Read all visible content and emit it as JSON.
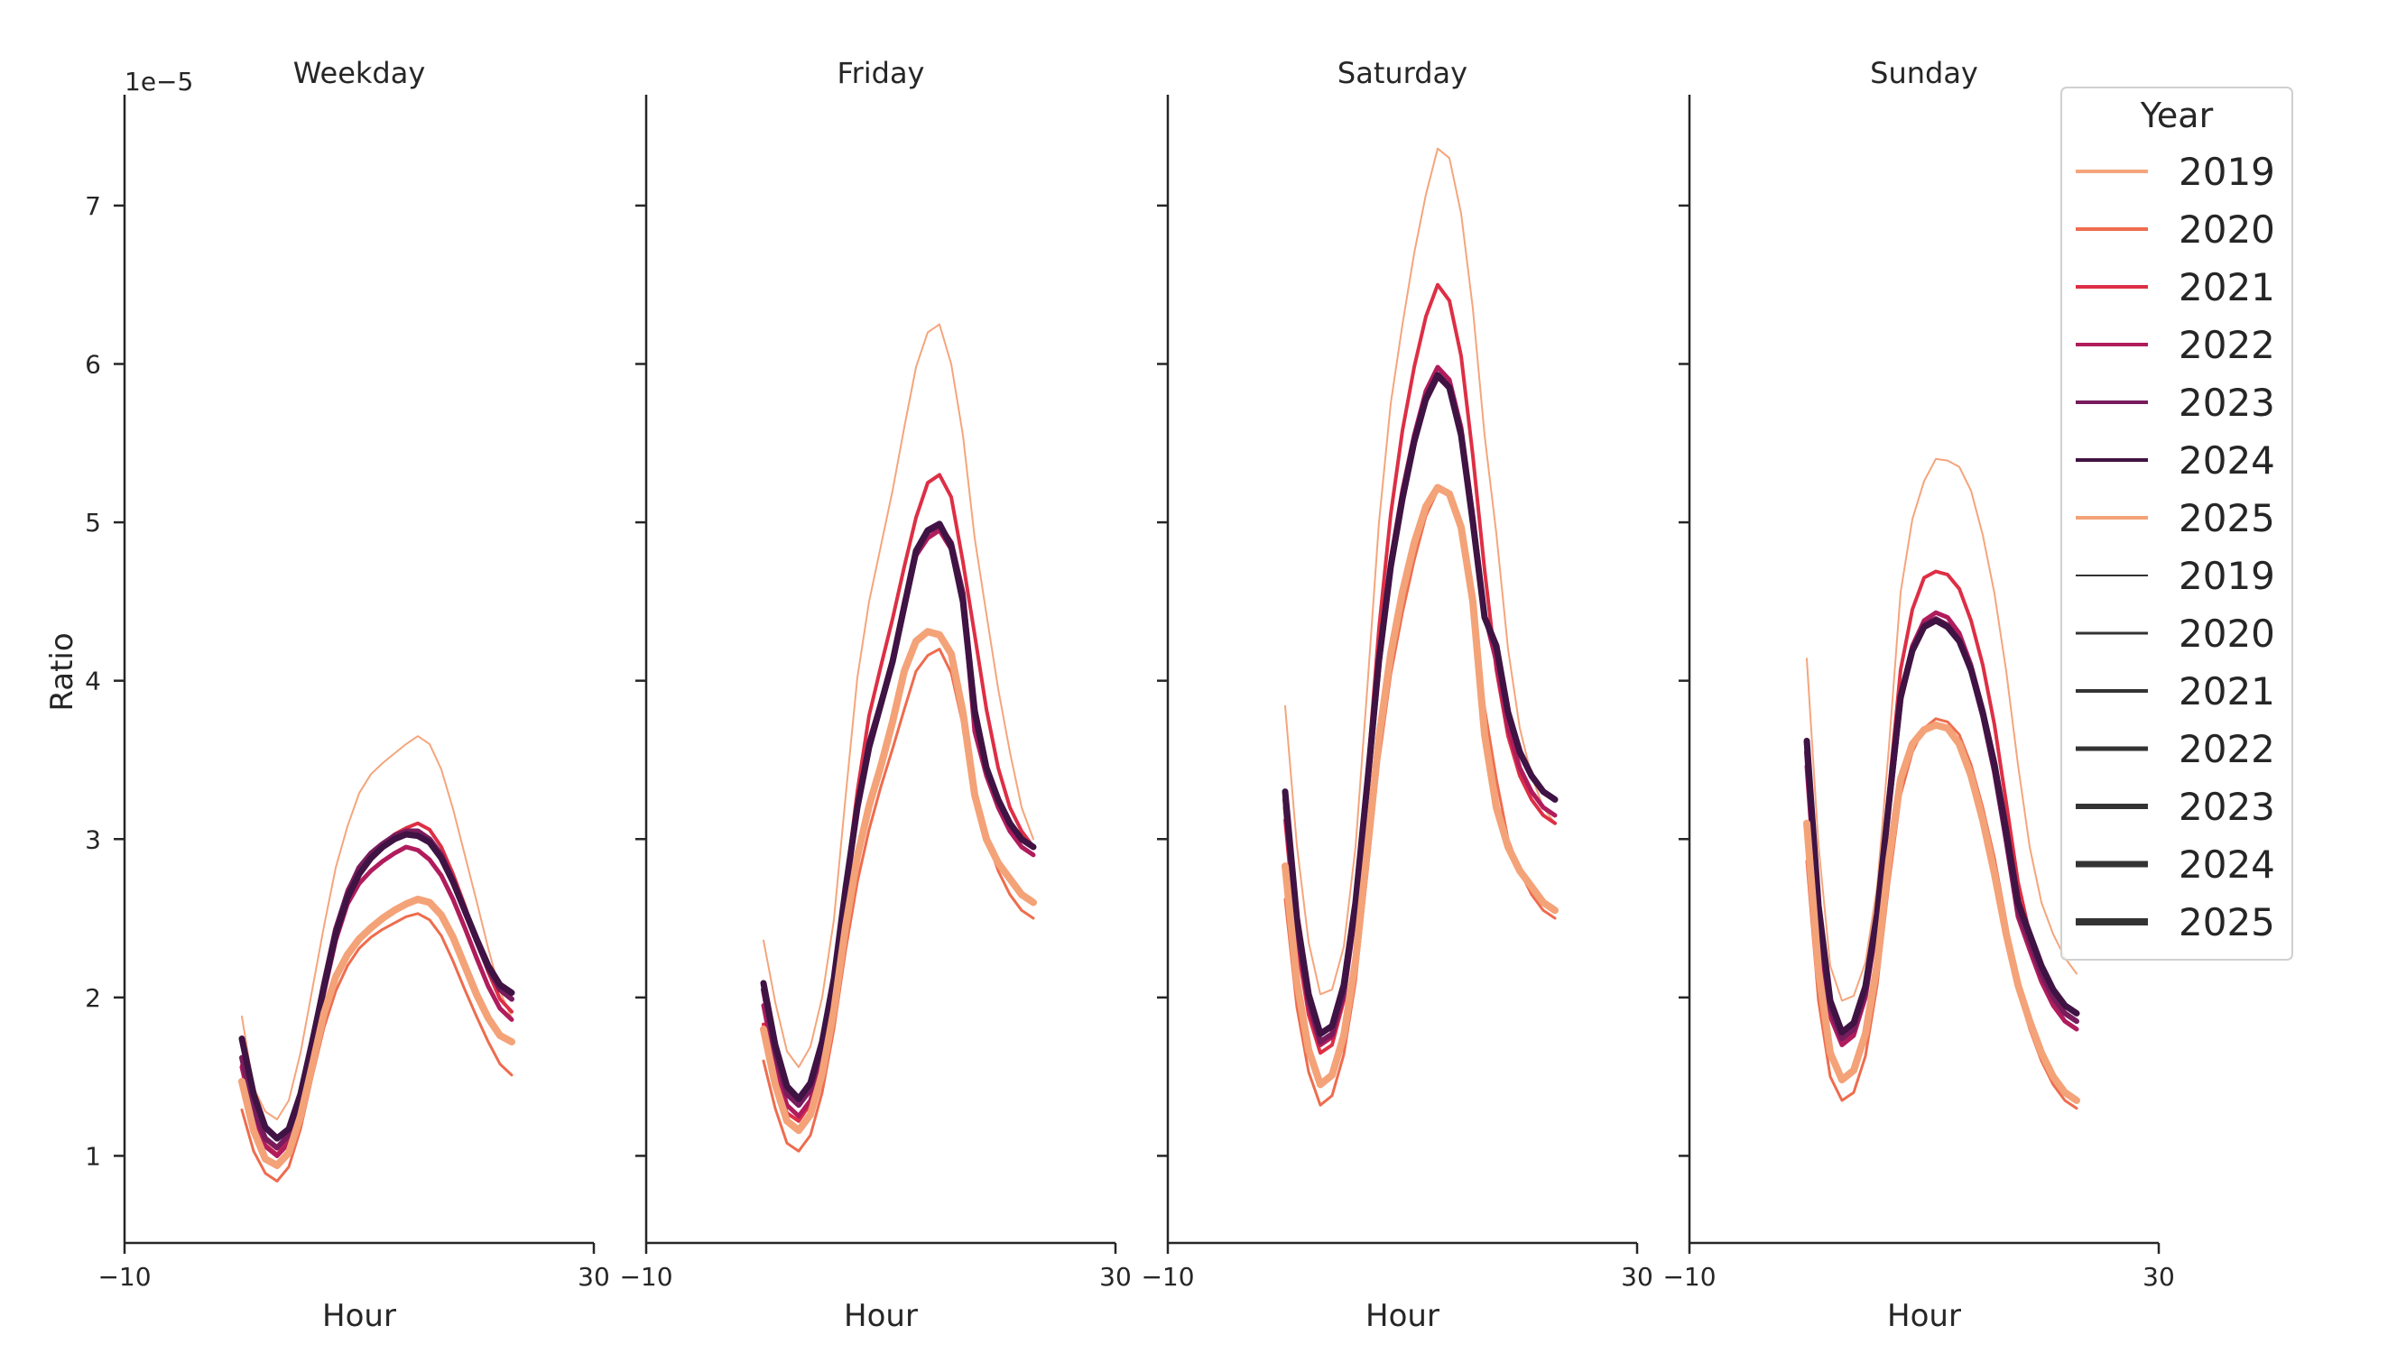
{
  "chart_data": {
    "type": "line",
    "ylabel": "Ratio",
    "y_offset_label": "1e−5",
    "y_scale": 1e-05,
    "ylim": [
      0.45,
      7.7
    ],
    "yticks": [
      1,
      2,
      3,
      4,
      5,
      6,
      7
    ],
    "xlim": [
      -10,
      30
    ],
    "xticks": [
      -10,
      30
    ],
    "grid": false,
    "hours": [
      0,
      1,
      2,
      3,
      4,
      5,
      6,
      7,
      8,
      9,
      10,
      11,
      12,
      13,
      14,
      15,
      16,
      17,
      18,
      19,
      20,
      21,
      22,
      23
    ],
    "colors": {
      "2019": "#f5a57c",
      "2020": "#ee6c4e",
      "2021": "#dd2f45",
      "2022": "#b01c5c",
      "2023": "#781c5d",
      "2024": "#3f1343",
      "2025": "#f4a278",
      "size_legend": "#333333"
    },
    "legend": {
      "title": "Year",
      "location": "upper-right",
      "hue_entries": [
        "2019",
        "2020",
        "2021",
        "2022",
        "2023",
        "2024",
        "2025"
      ],
      "size_entries": [
        "2019",
        "2020",
        "2021",
        "2022",
        "2023",
        "2024",
        "2025"
      ]
    },
    "panels": [
      {
        "title": "Weekday",
        "xlabel": "Hour",
        "series": [
          {
            "name": "2019",
            "width": 1,
            "values": [
              1.88,
              1.43,
              1.28,
              1.23,
              1.35,
              1.65,
              2.05,
              2.45,
              2.82,
              3.08,
              3.29,
              3.41,
              3.48,
              3.54,
              3.6,
              3.65,
              3.6,
              3.44,
              3.19,
              2.9,
              2.61,
              2.31,
              2.04,
              1.87
            ]
          },
          {
            "name": "2020",
            "width": 2,
            "values": [
              1.29,
              1.03,
              0.89,
              0.84,
              0.93,
              1.17,
              1.5,
              1.81,
              2.04,
              2.2,
              2.31,
              2.38,
              2.43,
              2.47,
              2.51,
              2.53,
              2.49,
              2.39,
              2.23,
              2.05,
              1.88,
              1.72,
              1.58,
              1.51
            ]
          },
          {
            "name": "2021",
            "width": 3,
            "values": [
              1.57,
              1.25,
              1.07,
              1.01,
              1.09,
              1.34,
              1.7,
              2.08,
              2.42,
              2.68,
              2.82,
              2.91,
              2.97,
              3.03,
              3.07,
              3.1,
              3.06,
              2.95,
              2.78,
              2.58,
              2.37,
              2.16,
              1.99,
              1.91
            ]
          },
          {
            "name": "2022",
            "width": 4,
            "values": [
              1.56,
              1.24,
              1.06,
              1.0,
              1.08,
              1.32,
              1.67,
              2.03,
              2.36,
              2.59,
              2.72,
              2.8,
              2.86,
              2.91,
              2.95,
              2.93,
              2.87,
              2.77,
              2.62,
              2.44,
              2.25,
              2.07,
              1.93,
              1.86
            ]
          },
          {
            "name": "2023",
            "width": 5,
            "values": [
              1.62,
              1.29,
              1.11,
              1.05,
              1.13,
              1.37,
              1.72,
              2.09,
              2.43,
              2.66,
              2.82,
              2.91,
              2.97,
              3.02,
              3.05,
              3.05,
              3.0,
              2.9,
              2.74,
              2.55,
              2.36,
              2.18,
              2.05,
              1.99
            ]
          },
          {
            "name": "2024",
            "width": 6,
            "values": [
              1.74,
              1.39,
              1.18,
              1.11,
              1.17,
              1.39,
              1.72,
              2.07,
              2.4,
              2.63,
              2.78,
              2.88,
              2.95,
              3.0,
              3.03,
              3.02,
              2.98,
              2.88,
              2.73,
              2.55,
              2.37,
              2.2,
              2.08,
              2.03
            ]
          },
          {
            "name": "2025",
            "width": 7,
            "values": [
              1.47,
              1.16,
              0.98,
              0.94,
              1.02,
              1.25,
              1.57,
              1.9,
              2.13,
              2.27,
              2.37,
              2.44,
              2.5,
              2.55,
              2.59,
              2.62,
              2.6,
              2.52,
              2.38,
              2.2,
              2.02,
              1.87,
              1.76,
              1.72
            ]
          }
        ]
      },
      {
        "title": "Friday",
        "xlabel": "Hour",
        "series": [
          {
            "name": "2019",
            "width": 1,
            "values": [
              2.36,
              1.97,
              1.66,
              1.56,
              1.69,
              2.0,
              2.49,
              3.27,
              4.02,
              4.5,
              4.85,
              5.2,
              5.6,
              5.98,
              6.2,
              6.25,
              6.0,
              5.55,
              4.9,
              4.42,
              3.95,
              3.55,
              3.2,
              3.0
            ]
          },
          {
            "name": "2020",
            "width": 2,
            "values": [
              1.6,
              1.3,
              1.08,
              1.03,
              1.13,
              1.4,
              1.8,
              2.3,
              2.73,
              3.06,
              3.33,
              3.57,
              3.82,
              4.06,
              4.16,
              4.2,
              4.05,
              3.72,
              3.31,
              3.01,
              2.8,
              2.65,
              2.55,
              2.5
            ]
          },
          {
            "name": "2021",
            "width": 3,
            "values": [
              1.83,
              1.5,
              1.27,
              1.22,
              1.33,
              1.62,
              2.07,
              2.71,
              3.3,
              3.78,
              4.09,
              4.39,
              4.72,
              5.03,
              5.25,
              5.3,
              5.16,
              4.75,
              4.29,
              3.82,
              3.45,
              3.2,
              3.05,
              2.95
            ]
          },
          {
            "name": "2022",
            "width": 4,
            "values": [
              1.95,
              1.57,
              1.32,
              1.25,
              1.35,
              1.62,
              2.03,
              2.63,
              3.18,
              3.59,
              3.87,
              4.14,
              4.5,
              4.79,
              4.9,
              4.95,
              4.83,
              4.51,
              3.68,
              3.4,
              3.2,
              3.05,
              2.95,
              2.9
            ]
          },
          {
            "name": "2023",
            "width": 5,
            "values": [
              2.05,
              1.65,
              1.39,
              1.32,
              1.42,
              1.69,
              2.09,
              2.67,
              3.21,
              3.61,
              3.86,
              4.12,
              4.46,
              4.8,
              4.94,
              4.98,
              4.87,
              4.55,
              3.78,
              3.45,
              3.25,
              3.1,
              3.0,
              2.95
            ]
          },
          {
            "name": "2024",
            "width": 6,
            "values": [
              2.09,
              1.7,
              1.44,
              1.36,
              1.46,
              1.72,
              2.12,
              2.69,
              3.2,
              3.58,
              3.85,
              4.12,
              4.47,
              4.82,
              4.95,
              4.99,
              4.85,
              4.5,
              3.81,
              3.45,
              3.25,
              3.1,
              3.0,
              2.95
            ]
          },
          {
            "name": "2025",
            "width": 7,
            "values": [
              1.8,
              1.45,
              1.22,
              1.16,
              1.26,
              1.52,
              1.92,
              2.45,
              2.89,
              3.21,
              3.46,
              3.74,
              4.06,
              4.25,
              4.31,
              4.29,
              4.17,
              3.8,
              3.28,
              3.0,
              2.85,
              2.75,
              2.65,
              2.6
            ]
          }
        ]
      },
      {
        "title": "Saturday",
        "xlabel": "Hour",
        "series": [
          {
            "name": "2019",
            "width": 1,
            "values": [
              3.84,
              2.96,
              2.35,
              2.02,
              2.05,
              2.32,
              2.95,
              3.95,
              5.0,
              5.75,
              6.25,
              6.7,
              7.07,
              7.36,
              7.3,
              6.95,
              6.35,
              5.55,
              4.93,
              4.2,
              3.7,
              3.4,
              3.2,
              3.1
            ]
          },
          {
            "name": "2020",
            "width": 2,
            "values": [
              2.62,
              1.94,
              1.53,
              1.32,
              1.38,
              1.64,
              2.1,
              2.79,
              3.5,
              4.04,
              4.43,
              4.76,
              5.04,
              5.2,
              5.18,
              4.96,
              4.46,
              3.83,
              3.38,
              3.0,
              2.8,
              2.65,
              2.55,
              2.5
            ]
          },
          {
            "name": "2021",
            "width": 3,
            "values": [
              3.12,
              2.34,
              1.89,
              1.65,
              1.7,
              1.98,
              2.56,
              3.4,
              4.33,
              5.05,
              5.58,
              5.98,
              6.3,
              6.5,
              6.4,
              6.05,
              5.42,
              4.7,
              4.07,
              3.65,
              3.4,
              3.25,
              3.15,
              3.1
            ]
          },
          {
            "name": "2022",
            "width": 4,
            "values": [
              3.2,
              2.41,
              1.94,
              1.7,
              1.75,
              2.01,
              2.55,
              3.33,
              4.14,
              4.76,
              5.2,
              5.55,
              5.83,
              5.98,
              5.9,
              5.6,
              5.05,
              4.42,
              4.12,
              3.7,
              3.45,
              3.3,
              3.2,
              3.15
            ]
          },
          {
            "name": "2023",
            "width": 5,
            "values": [
              3.25,
              2.45,
              1.98,
              1.72,
              1.77,
              2.03,
              2.56,
              3.32,
              4.11,
              4.71,
              5.14,
              5.5,
              5.77,
              5.92,
              5.85,
              5.55,
              5.0,
              4.4,
              4.2,
              3.8,
              3.55,
              3.4,
              3.3,
              3.25
            ]
          },
          {
            "name": "2024",
            "width": 6,
            "values": [
              3.3,
              2.5,
              2.02,
              1.77,
              1.82,
              2.08,
              2.6,
              3.35,
              4.13,
              4.72,
              5.15,
              5.51,
              5.78,
              5.93,
              5.85,
              5.55,
              5.0,
              4.4,
              4.22,
              3.8,
              3.55,
              3.4,
              3.3,
              3.25
            ]
          },
          {
            "name": "2025",
            "width": 7,
            "values": [
              2.83,
              2.1,
              1.67,
              1.45,
              1.51,
              1.76,
              2.23,
              2.93,
              3.64,
              4.17,
              4.56,
              4.87,
              5.1,
              5.22,
              5.18,
              4.97,
              4.5,
              3.66,
              3.2,
              2.95,
              2.8,
              2.7,
              2.6,
              2.55
            ]
          }
        ]
      },
      {
        "title": "Sunday",
        "xlabel": "Hour",
        "series": [
          {
            "name": "2019",
            "width": 1,
            "values": [
              4.14,
              2.96,
              2.2,
              1.98,
              2.01,
              2.22,
              2.7,
              3.58,
              4.56,
              5.02,
              5.26,
              5.4,
              5.39,
              5.35,
              5.2,
              4.92,
              4.55,
              4.06,
              3.47,
              2.95,
              2.6,
              2.4,
              2.25,
              2.15
            ]
          },
          {
            "name": "2020",
            "width": 2,
            "values": [
              2.86,
              1.98,
              1.5,
              1.35,
              1.4,
              1.63,
              2.08,
              2.72,
              3.28,
              3.55,
              3.7,
              3.76,
              3.74,
              3.66,
              3.47,
              3.2,
              2.88,
              2.48,
              2.05,
              1.8,
              1.6,
              1.45,
              1.35,
              1.3
            ]
          },
          {
            "name": "2021",
            "width": 3,
            "values": [
              3.5,
              2.5,
              1.95,
              1.78,
              1.84,
              2.08,
              2.56,
              3.31,
              4.07,
              4.45,
              4.65,
              4.69,
              4.67,
              4.58,
              4.38,
              4.1,
              3.72,
              3.23,
              2.73,
              2.4,
              2.2,
              2.05,
              1.95,
              1.9
            ]
          },
          {
            "name": "2022",
            "width": 4,
            "values": [
              3.46,
              2.45,
              1.88,
              1.7,
              1.76,
              2.0,
              2.47,
              3.19,
              3.91,
              4.22,
              4.38,
              4.43,
              4.4,
              4.3,
              4.1,
              3.82,
              3.45,
              2.98,
              2.51,
              2.3,
              2.1,
              1.95,
              1.85,
              1.8
            ]
          },
          {
            "name": "2023",
            "width": 5,
            "values": [
              3.55,
              2.52,
              1.93,
              1.74,
              1.8,
              2.03,
              2.49,
              3.2,
              3.88,
              4.19,
              4.35,
              4.39,
              4.35,
              4.25,
              4.06,
              3.78,
              3.43,
              3.0,
              2.55,
              2.35,
              2.15,
              2.0,
              1.9,
              1.85
            ]
          },
          {
            "name": "2024",
            "width": 6,
            "values": [
              3.62,
              2.58,
              1.98,
              1.78,
              1.84,
              2.07,
              2.53,
              3.23,
              3.9,
              4.19,
              4.34,
              4.38,
              4.34,
              4.25,
              4.07,
              3.8,
              3.47,
              3.05,
              2.6,
              2.4,
              2.2,
              2.05,
              1.95,
              1.9
            ]
          },
          {
            "name": "2025",
            "width": 7,
            "values": [
              3.1,
              2.17,
              1.65,
              1.48,
              1.54,
              1.77,
              2.21,
              2.87,
              3.38,
              3.6,
              3.69,
              3.72,
              3.7,
              3.6,
              3.4,
              3.12,
              2.78,
              2.4,
              2.08,
              1.85,
              1.65,
              1.5,
              1.4,
              1.35
            ]
          }
        ]
      }
    ]
  }
}
